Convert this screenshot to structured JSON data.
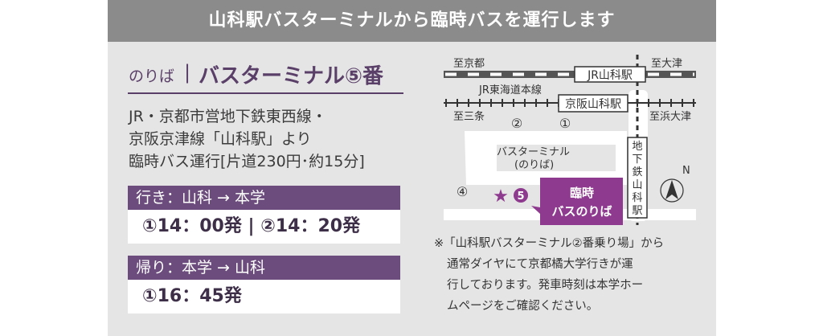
{
  "header": {
    "title": "山科駅バスターミナルから臨時バスを運行します"
  },
  "boarding": {
    "label": "のりば",
    "divider": "|",
    "title": "バスターミナル⑤番"
  },
  "description": [
    "JR・京都市営地下鉄東西線・",
    "京阪京津線「山科駅」より",
    "臨時バス運行[片道230円･約15分]"
  ],
  "outbound": {
    "heading": "行き：山科 → 本学",
    "times": "①14：00発 | ②14：20発"
  },
  "return": {
    "heading": "帰り：本学 → 山科",
    "times": "①16：45発"
  },
  "map": {
    "to_kyoto": "至京都",
    "to_otsu": "至大津",
    "jr_station": "JR山科駅",
    "jr_line": "JR東海道本線",
    "keihan_station": "京阪山科駅",
    "to_sanjo": "至三条",
    "to_hamaotsu": "至浜大津",
    "stop1": "①",
    "stop2": "②",
    "stop4": "④",
    "stop5": "5",
    "star": "★",
    "terminal": "バスターミナル",
    "terminal_sub": "(のりば)",
    "subway": [
      "地",
      "下",
      "鉄",
      "山",
      "科",
      "駅"
    ],
    "temp_line1": "臨時",
    "temp_line2": "バスのりば",
    "north": "N",
    "north_icon": "compass-arrow-icon"
  },
  "note": [
    "※「山科駅バスターミナル②番乗り場」から",
    "通常ダイヤにて京都橘大学行きが運",
    "行しております。発車時刻は本学ホー",
    "ムページをご確認ください。"
  ],
  "colors": {
    "header": "#8b8b8b",
    "background": "#e6e5e6",
    "purple": "#6b4c7c",
    "map_purple": "#8e3a8e"
  }
}
